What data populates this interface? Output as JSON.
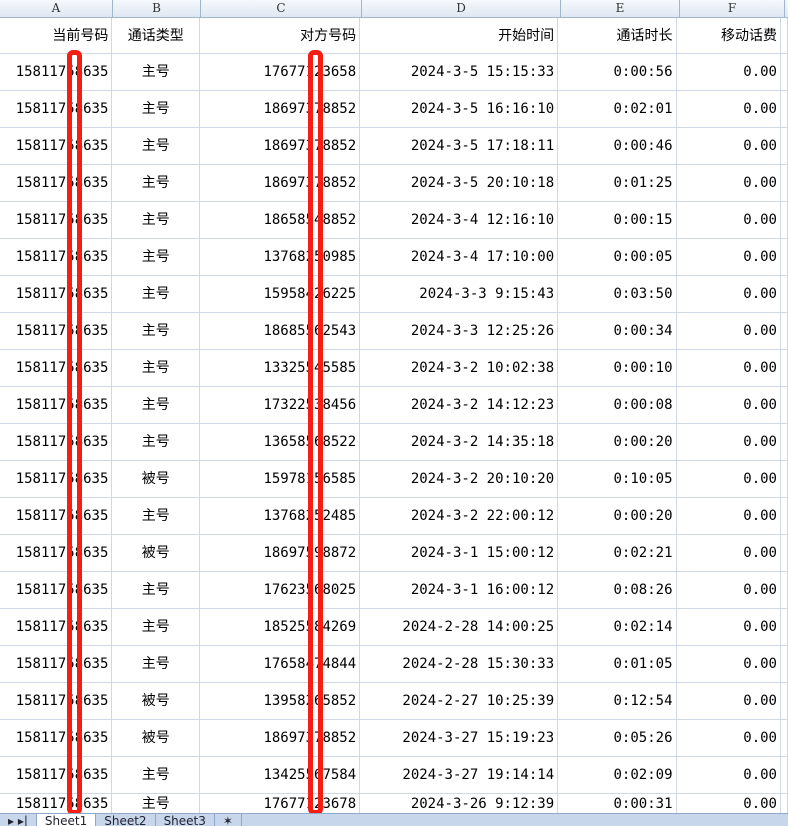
{
  "columns": [
    "A",
    "B",
    "C",
    "D",
    "E",
    "F"
  ],
  "headers": [
    "当前号码",
    "通话类型",
    "对方号码",
    "开始时间",
    "通话时长",
    "移动话费"
  ],
  "rows": [
    [
      "15811758635",
      "主号",
      "17677123658",
      "2024-3-5 15:15:33",
      "0:00:56",
      "0.00"
    ],
    [
      "15811758635",
      "主号",
      "18697378852",
      "2024-3-5 16:16:10",
      "0:02:01",
      "0.00"
    ],
    [
      "15811758635",
      "主号",
      "18697378852",
      "2024-3-5 17:18:11",
      "0:00:46",
      "0.00"
    ],
    [
      "15811758635",
      "主号",
      "18697378852",
      "2024-3-5 20:10:18",
      "0:01:25",
      "0.00"
    ],
    [
      "15811758635",
      "主号",
      "18658548852",
      "2024-3-4 12:16:10",
      "0:00:15",
      "0.00"
    ],
    [
      "15811758635",
      "主号",
      "13768250985",
      "2024-3-4 17:10:00",
      "0:00:05",
      "0.00"
    ],
    [
      "15811758635",
      "主号",
      "15958426225",
      "2024-3-3 9:15:43",
      "0:03:50",
      "0.00"
    ],
    [
      "15811758635",
      "主号",
      "18685562543",
      "2024-3-3 12:25:26",
      "0:00:34",
      "0.00"
    ],
    [
      "15811758635",
      "主号",
      "13325545585",
      "2024-3-2 10:02:38",
      "0:00:10",
      "0.00"
    ],
    [
      "15811758635",
      "主号",
      "17322538456",
      "2024-3-2 14:12:23",
      "0:00:08",
      "0.00"
    ],
    [
      "15811758635",
      "主号",
      "13658568522",
      "2024-3-2 14:35:18",
      "0:00:20",
      "0.00"
    ],
    [
      "15811758635",
      "被号",
      "15978156585",
      "2024-3-2 20:10:20",
      "0:10:05",
      "0.00"
    ],
    [
      "15811758635",
      "主号",
      "13768252485",
      "2024-3-2 22:00:12",
      "0:00:20",
      "0.00"
    ],
    [
      "15811758635",
      "被号",
      "18697598872",
      "2024-3-1 15:00:12",
      "0:02:21",
      "0.00"
    ],
    [
      "15811758635",
      "主号",
      "17623568025",
      "2024-3-1 16:00:12",
      "0:08:26",
      "0.00"
    ],
    [
      "15811758635",
      "主号",
      "18525584269",
      "2024-2-28 14:00:25",
      "0:02:14",
      "0.00"
    ],
    [
      "15811758635",
      "主号",
      "17658474844",
      "2024-2-28 15:30:33",
      "0:01:05",
      "0.00"
    ],
    [
      "15811758635",
      "被号",
      "13958265852",
      "2024-2-27 10:25:39",
      "0:12:54",
      "0.00"
    ],
    [
      "15811758635",
      "被号",
      "18697378852",
      "2024-3-27 15:19:23",
      "0:05:26",
      "0.00"
    ],
    [
      "15811758635",
      "主号",
      "13425567584",
      "2024-3-27 19:14:14",
      "0:02:09",
      "0.00"
    ],
    [
      "15811758635",
      "主号",
      "17677123678",
      "2024-3-26 9:12:39",
      "0:00:31",
      "0.00"
    ]
  ],
  "sheets": [
    "Sheet1",
    "Sheet2",
    "Sheet3"
  ],
  "active_sheet": "Sheet1",
  "redaction_color": "#f41e14"
}
